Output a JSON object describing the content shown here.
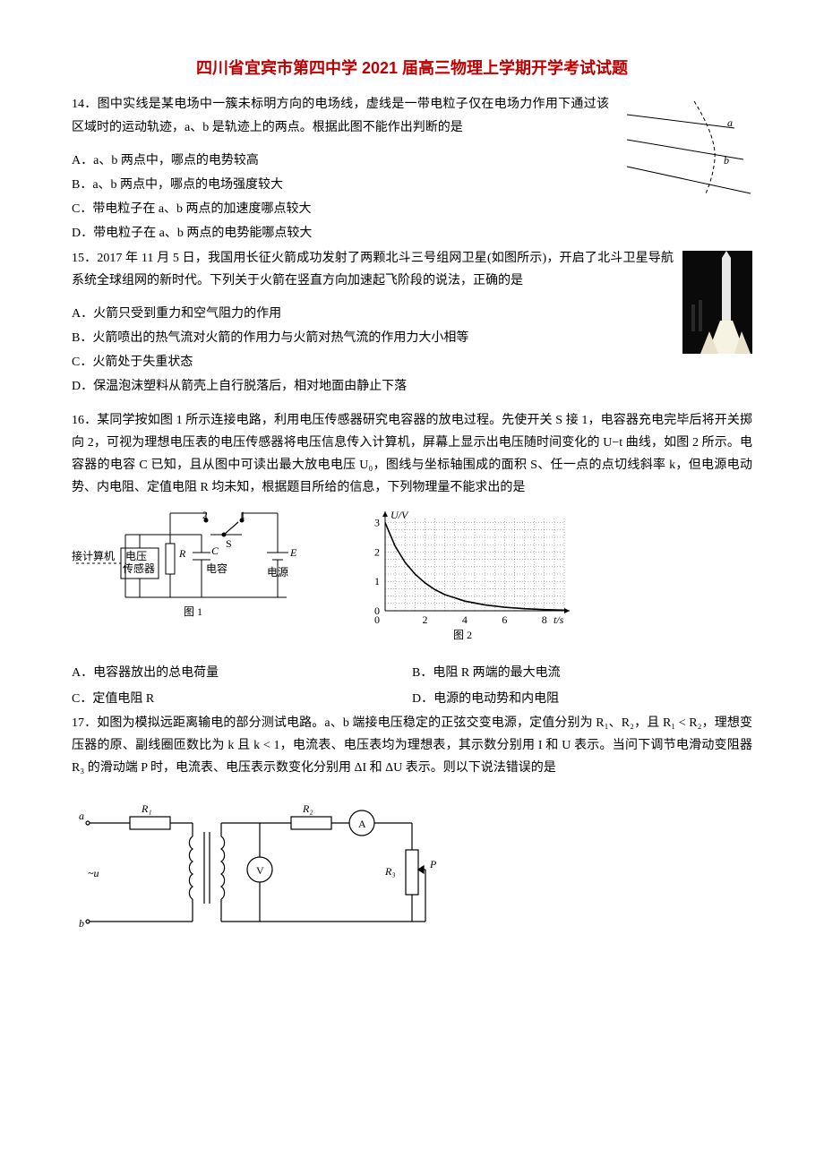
{
  "title": "四川省宜宾市第四中学 2021 届高三物理上学期开学考试试题",
  "q14": {
    "stem": "14．图中实线是某电场中一簇未标明方向的电场线，虚线是一带电粒子仅在电场力作用下通过该区域时的运动轨迹，a、b 是轨迹上的两点。根据此图不能作出判断的是",
    "A": "A．a、b 两点中，哪点的电势较高",
    "B": "B．a、b 两点中，哪点的电场强度较大",
    "C": "C．带电粒子在 a、b 两点的加速度哪点较大",
    "D": "D．带电粒子在 a、b 两点的电势能哪点较大",
    "fig": {
      "label_a": "a",
      "label_b": "b",
      "line_color": "#000000",
      "dash_color": "#000000"
    }
  },
  "q15": {
    "stem": "15．2017 年 11 月 5 日，我国用长征火箭成功发射了两颗北斗三号组网卫星(如图所示)，开启了北斗卫星导航系统全球组网的新时代。下列关于火箭在竖直方向加速起飞阶段的说法，正确的是",
    "A": "A．火箭只受到重力和空气阻力的作用",
    "B": "B．火箭喷出的热气流对火箭的作用力与火箭对热气流的作用力大小相等",
    "C": "C．火箭处于失重状态",
    "D": "D．保温泡沫塑料从箭壳上自行脱落后，相对地面由静止下落",
    "fig": {
      "bg": "#0a0a0a",
      "rocket": "#e8e8e8",
      "flame": "#f7f3e3"
    }
  },
  "q16": {
    "stem1": "16．某同学按如图 1 所示连接电路，利用电压传感器研究电容器的放电过程。先使开关 S 接 1，电容器充电完毕后将开关掷向 2，可视为理想电压表的电压传感器将电压信息传入计算机，屏幕上显示出电压随时间变化的 U−t 曲线，如图 2 所示。电容器的电容 C 已知，且从图中可读出最大放电电压 U₀，图线与坐标轴围成的面积 S、任一点的点切线斜率 k，但电源电动势、内电阻、定值电阻 R 均未知，根据题目所给的信息，下列物理量不能求出的是",
    "A": "A．电容器放出的总电荷量",
    "B": "B．电阻 R 两端的最大电流",
    "C": "C．定值电阻 R",
    "D": "D．电源的电动势和内电阻",
    "fig1": {
      "caption": "图 1",
      "labels": {
        "computer": "接计算机",
        "sensor1": "电压",
        "sensor2": "传感器",
        "R": "R",
        "S": "S",
        "one": "1",
        "two": "2",
        "C": "C",
        "cap": "电容",
        "E": "E",
        "src": "电源"
      },
      "line_color": "#000000",
      "fill": "#ffffff"
    },
    "fig2": {
      "caption": "图 2",
      "type": "line",
      "ylabel": "U/V",
      "xlabel": "t/s",
      "xlim": [
        0,
        9
      ],
      "ylim": [
        0,
        3.2
      ],
      "yticks": [
        0,
        1,
        2,
        3
      ],
      "xticks": [
        0,
        2,
        4,
        6,
        8
      ],
      "curve_color": "#000000",
      "grid_color": "#000000",
      "curve": [
        {
          "x": 0,
          "y": 3.0
        },
        {
          "x": 0.5,
          "y": 2.2
        },
        {
          "x": 1,
          "y": 1.65
        },
        {
          "x": 1.5,
          "y": 1.25
        },
        {
          "x": 2,
          "y": 0.95
        },
        {
          "x": 2.5,
          "y": 0.72
        },
        {
          "x": 3,
          "y": 0.55
        },
        {
          "x": 4,
          "y": 0.33
        },
        {
          "x": 5,
          "y": 0.2
        },
        {
          "x": 6,
          "y": 0.12
        },
        {
          "x": 7,
          "y": 0.07
        },
        {
          "x": 8,
          "y": 0.04
        },
        {
          "x": 9,
          "y": 0.02
        }
      ]
    }
  },
  "q17": {
    "stem": "17．如图为模拟远距离输电的部分测试电路。a、b 端接电压稳定的正弦交变电源，定值分别为 R₁、R₂，且 R₁ < R₂，理想变压器的原、副线圈匝数比为 k 且 k < 1，电流表、电压表均为理想表，其示数分别用 I 和 U 表示。当问下调节电滑动变阻器 R₃ 的滑动端 P 时，电流表、电压表示数变化分别用 ΔI 和  ΔU 表示。则以下说法错误的是",
    "fig": {
      "labels": {
        "a": "a",
        "b": "b",
        "u": "~u",
        "R1": "R₁",
        "R2": "R₂",
        "R3": "R₃",
        "A": "A",
        "V": "V",
        "P": "P"
      },
      "line_color": "#000000"
    }
  }
}
